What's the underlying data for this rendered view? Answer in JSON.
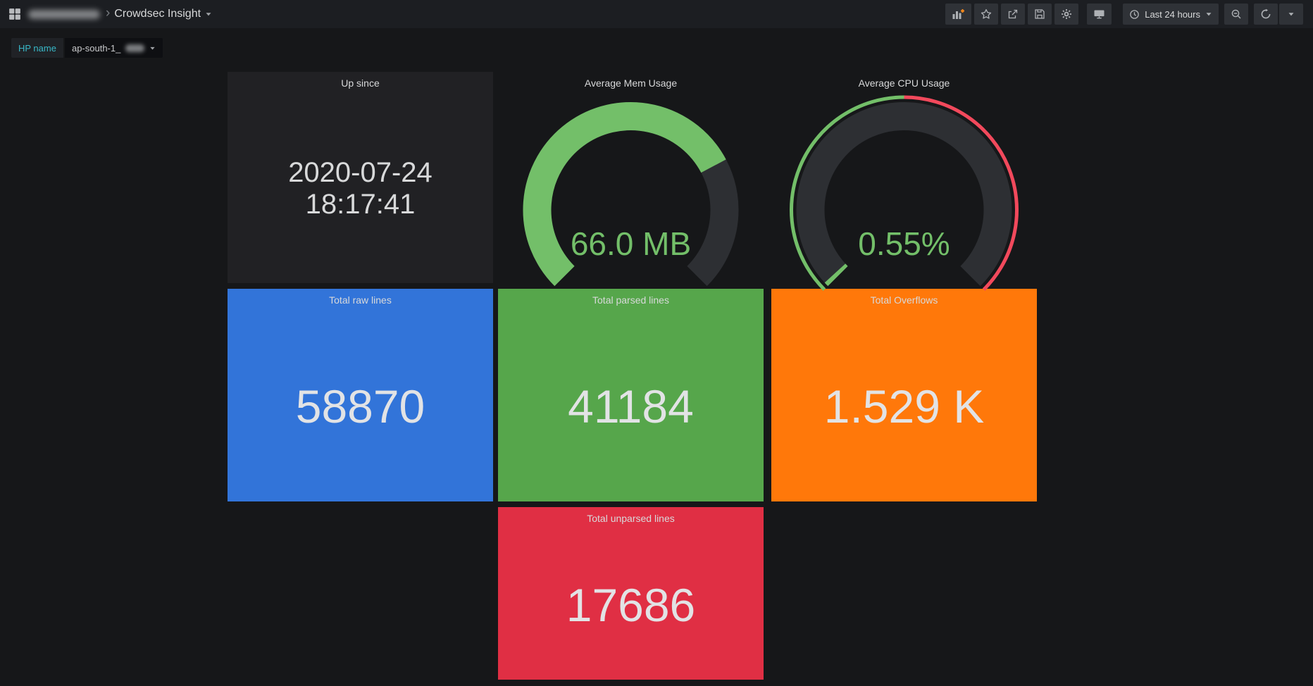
{
  "nav": {
    "dashboard_title": "Crowdsec Insight",
    "breadcrumb_separator": "›",
    "time_range_label": "Last 24 hours"
  },
  "variables": {
    "label": "HP name",
    "value_visible": "ap-south-1_"
  },
  "panels": {
    "up_since": {
      "title": "Up since",
      "value_line1": "2020-07-24",
      "value_line2": "18:17:41"
    },
    "stats": [
      {
        "title": "Total raw lines",
        "value": "58870",
        "bg": "#3274D9"
      },
      {
        "title": "Total parsed lines",
        "value": "41184",
        "bg": "#56A64B"
      },
      {
        "title": "Total Overflows",
        "value": "1.529 K",
        "bg": "#FF780A"
      },
      {
        "title": "Total unparsed lines",
        "value": "17686",
        "bg": "#E02F44"
      }
    ]
  },
  "chart_data": [
    {
      "type": "gauge",
      "title": "Average Mem Usage",
      "value_text": "66.0 MB",
      "value": 66.0,
      "unit": "MB",
      "fraction_filled": 0.73,
      "fill_color": "#73BF69",
      "arc_span_degrees": 270
    },
    {
      "type": "gauge",
      "title": "Average CPU Usage",
      "value_text": "0.55%",
      "value": 0.55,
      "unit": "%",
      "fraction_filled": 0.0055,
      "fill_color": "#73BF69",
      "arc_span_degrees": 270,
      "threshold_band": [
        {
          "color": "#73BF69",
          "to_fraction": 0.5
        },
        {
          "color": "#F2495C",
          "to_fraction": 1.0
        }
      ]
    }
  ],
  "colors": {
    "gauge_green": "#73BF69",
    "gauge_red": "#F2495C",
    "gauge_track": "#2d2f33",
    "variable_label_text": "#38b8c8"
  }
}
